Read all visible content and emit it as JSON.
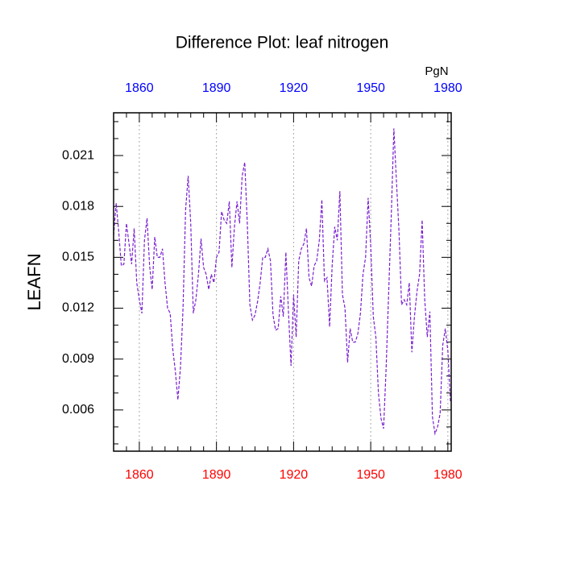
{
  "chart_data": {
    "type": "line",
    "title": "Difference Plot: leaf nitrogen",
    "ylabel": "LEAFN",
    "units": "PgN",
    "x": [
      1850,
      1851,
      1852,
      1853,
      1854,
      1855,
      1856,
      1857,
      1858,
      1859,
      1860,
      1861,
      1862,
      1863,
      1864,
      1865,
      1866,
      1867,
      1868,
      1869,
      1870,
      1871,
      1872,
      1873,
      1874,
      1875,
      1876,
      1877,
      1878,
      1879,
      1880,
      1881,
      1882,
      1883,
      1884,
      1885,
      1886,
      1887,
      1888,
      1889,
      1890,
      1891,
      1892,
      1893,
      1894,
      1895,
      1896,
      1897,
      1898,
      1899,
      1900,
      1901,
      1902,
      1903,
      1904,
      1905,
      1906,
      1907,
      1908,
      1909,
      1910,
      1911,
      1912,
      1913,
      1914,
      1915,
      1916,
      1917,
      1918,
      1919,
      1920,
      1921,
      1922,
      1923,
      1924,
      1925,
      1926,
      1927,
      1928,
      1929,
      1930,
      1931,
      1932,
      1933,
      1934,
      1935,
      1936,
      1937,
      1938,
      1939,
      1940,
      1941,
      1942,
      1943,
      1944,
      1945,
      1946,
      1947,
      1948,
      1949,
      1950,
      1951,
      1952,
      1953,
      1954,
      1955,
      1956,
      1957,
      1958,
      1959,
      1960,
      1961,
      1962,
      1963,
      1964,
      1965,
      1966,
      1967,
      1968,
      1969,
      1970,
      1971,
      1972,
      1973,
      1974,
      1975,
      1976,
      1977,
      1978,
      1979,
      1980,
      1981
    ],
    "series": [
      {
        "color": "#7a1fd0",
        "values": [
          0.0163,
          0.0182,
          0.0165,
          0.0145,
          0.0146,
          0.017,
          0.0158,
          0.0146,
          0.0167,
          0.0135,
          0.0125,
          0.0117,
          0.016,
          0.0173,
          0.0145,
          0.0131,
          0.0162,
          0.015,
          0.015,
          0.0155,
          0.0135,
          0.012,
          0.0117,
          0.0096,
          0.0083,
          0.0066,
          0.0085,
          0.012,
          0.0178,
          0.0198,
          0.017,
          0.0117,
          0.0125,
          0.014,
          0.0161,
          0.0144,
          0.014,
          0.0131,
          0.014,
          0.0135,
          0.015,
          0.0153,
          0.0177,
          0.0172,
          0.017,
          0.0183,
          0.0144,
          0.0168,
          0.0183,
          0.017,
          0.0198,
          0.0206,
          0.017,
          0.0122,
          0.0113,
          0.0116,
          0.0124,
          0.0135,
          0.015,
          0.015,
          0.0155,
          0.0148,
          0.0116,
          0.0107,
          0.0108,
          0.0127,
          0.0115,
          0.0153,
          0.0118,
          0.0086,
          0.0128,
          0.0103,
          0.0148,
          0.0155,
          0.0158,
          0.0167,
          0.0138,
          0.0133,
          0.0145,
          0.0148,
          0.016,
          0.0184,
          0.0136,
          0.0138,
          0.0109,
          0.0145,
          0.0168,
          0.016,
          0.0189,
          0.0128,
          0.012,
          0.0088,
          0.0108,
          0.01,
          0.01,
          0.0105,
          0.0117,
          0.014,
          0.015,
          0.0185,
          0.0157,
          0.0115,
          0.0103,
          0.007,
          0.0055,
          0.0049,
          0.0085,
          0.013,
          0.0175,
          0.0226,
          0.0195,
          0.0165,
          0.0122,
          0.0125,
          0.0122,
          0.0135,
          0.0094,
          0.0115,
          0.013,
          0.014,
          0.0172,
          0.0125,
          0.0103,
          0.0118,
          0.0056,
          0.0046,
          0.005,
          0.0058,
          0.0098,
          0.0108,
          0.0095,
          0.0065
        ]
      }
    ],
    "xlim": [
      1850,
      1981.3
    ],
    "xticks": [
      1860,
      1890,
      1920,
      1950,
      1980
    ],
    "xminorticks": [
      1855,
      1865,
      1870,
      1875,
      1880,
      1885,
      1895,
      1900,
      1905,
      1910,
      1915,
      1925,
      1930,
      1935,
      1940,
      1945,
      1955,
      1960,
      1965,
      1970,
      1975
    ],
    "ylim": [
      0.00357,
      0.02352
    ],
    "yticks": [
      0.006,
      0.009,
      0.012,
      0.015,
      0.018,
      0.021
    ],
    "yminorticks": [
      0.004,
      0.005,
      0.007,
      0.008,
      0.01,
      0.011,
      0.013,
      0.014,
      0.016,
      0.017,
      0.019,
      0.02,
      0.022,
      0.023
    ],
    "x_tick_label_color": "#ff0000",
    "x2_tick_label_color": "#0000ff",
    "grid": true
  }
}
